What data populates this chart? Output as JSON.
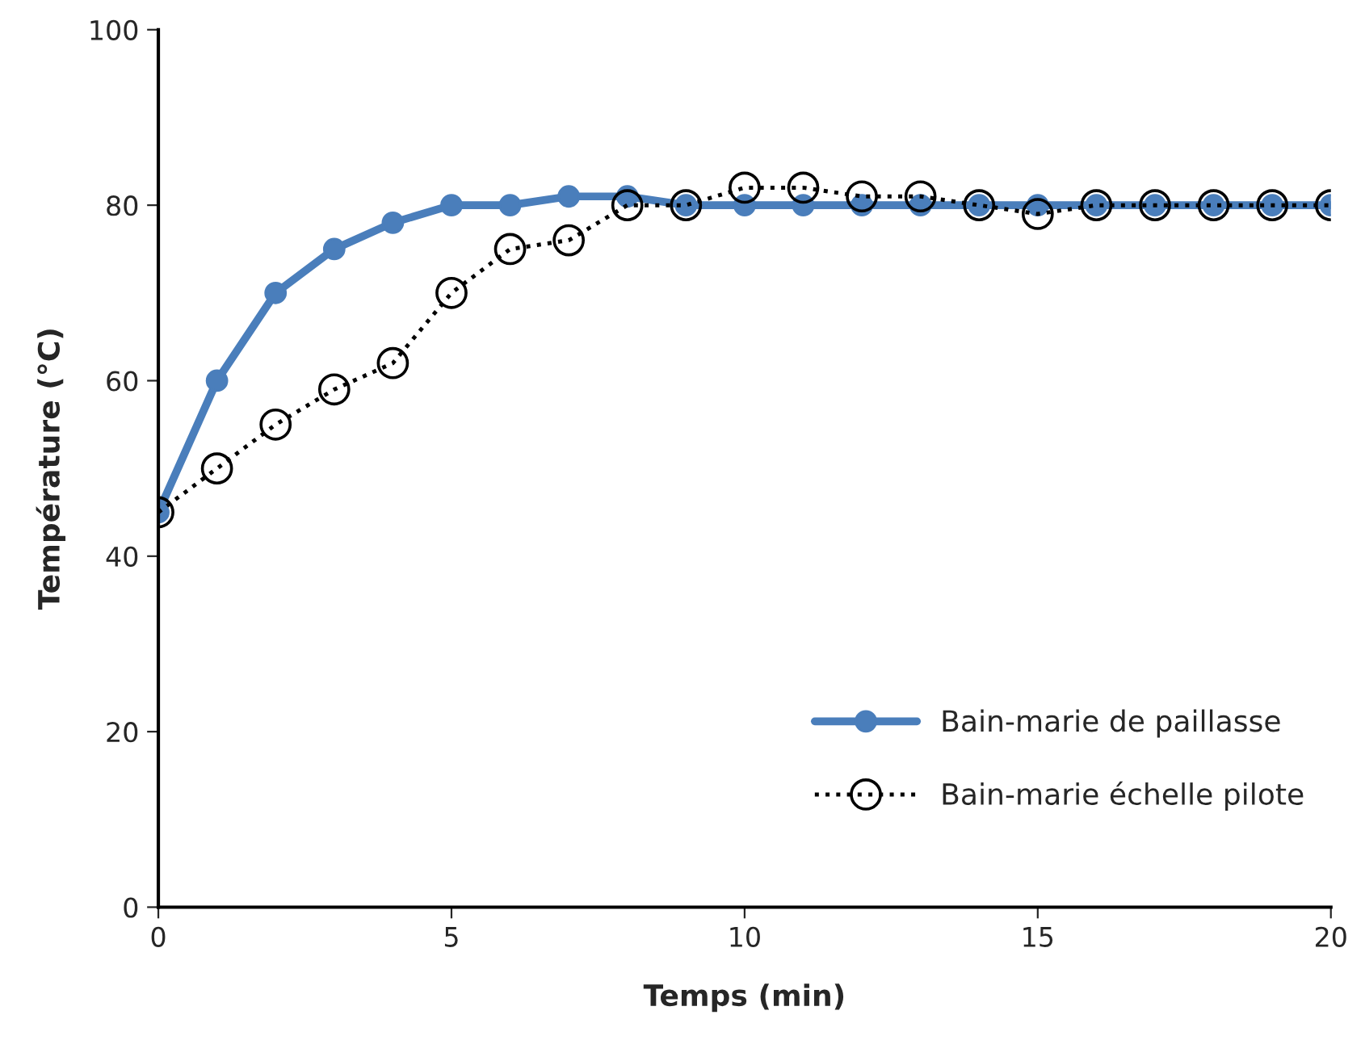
{
  "chart_data": {
    "type": "line",
    "xlabel": "Temps (min)",
    "ylabel": "Température (°C)",
    "x": [
      0,
      1,
      2,
      3,
      4,
      5,
      6,
      7,
      8,
      9,
      10,
      11,
      12,
      13,
      14,
      15,
      16,
      17,
      18,
      19,
      20
    ],
    "series": [
      {
        "name": "Bain-marie de paillasse",
        "color": "#4a7ebb",
        "marker": "circle",
        "line_style": "solid",
        "values": [
          45,
          60,
          70,
          75,
          78,
          80,
          80,
          81,
          81,
          80,
          80,
          80,
          80,
          80,
          80,
          80,
          80,
          80,
          80,
          80,
          80
        ]
      },
      {
        "name": "Bain-marie échelle pilote",
        "color": "#000000",
        "marker": "circle",
        "line_style": "dotted",
        "values": [
          45,
          50,
          55,
          59,
          62,
          70,
          75,
          76,
          80,
          80,
          82,
          82,
          81,
          81,
          80,
          79,
          80,
          80,
          80,
          80,
          80
        ]
      }
    ],
    "xlim": [
      0,
      20
    ],
    "xticks": [
      0,
      5,
      10,
      15,
      20
    ],
    "ylim": [
      0,
      100
    ],
    "yticks": [
      0,
      20,
      40,
      60,
      80,
      100
    ],
    "grid": false,
    "legend": "bottom right"
  }
}
